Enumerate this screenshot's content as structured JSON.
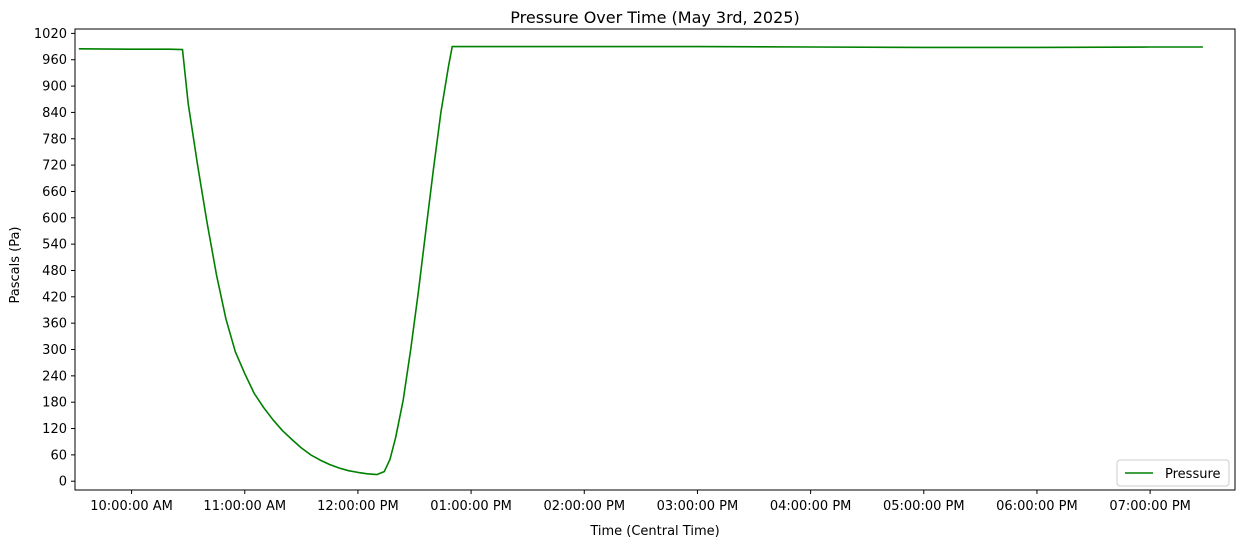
{
  "chart_data": {
    "type": "line",
    "title": "Pressure Over Time (May 3rd, 2025)",
    "xlabel": "Time (Central Time)",
    "ylabel": "Pascals (Pa)",
    "ylim": [
      -20,
      1030
    ],
    "xlim": [
      "09:30",
      "19:45"
    ],
    "x_ticks": [
      "10:00",
      "11:00",
      "12:00",
      "13:00",
      "14:00",
      "15:00",
      "16:00",
      "17:00",
      "18:00",
      "19:00"
    ],
    "x_tick_labels": [
      "10:00:00 AM",
      "11:00:00 AM",
      "12:00:00 PM",
      "01:00:00 PM",
      "02:00:00 PM",
      "03:00:00 PM",
      "04:00:00 PM",
      "05:00:00 PM",
      "06:00:00 PM",
      "07:00:00 PM"
    ],
    "y_ticks": [
      0,
      60,
      120,
      180,
      240,
      300,
      360,
      420,
      480,
      540,
      600,
      660,
      720,
      780,
      840,
      900,
      960,
      1020
    ],
    "y_tick_labels": [
      "0",
      "60",
      "120",
      "180",
      "240",
      "300",
      "360",
      "420",
      "480",
      "540",
      "600",
      "660",
      "720",
      "780",
      "840",
      "900",
      "960",
      "1020"
    ],
    "grid": false,
    "legend_position": "lower right",
    "colors": {
      "line": "#008000",
      "axis": "#000000",
      "background": "#ffffff"
    },
    "series": [
      {
        "name": "Pressure",
        "x": [
          "09:32",
          "10:00",
          "10:20",
          "10:27",
          "10:30",
          "10:35",
          "10:40",
          "10:45",
          "10:50",
          "10:55",
          "11:00",
          "11:05",
          "11:10",
          "11:15",
          "11:20",
          "11:25",
          "11:30",
          "11:35",
          "11:40",
          "11:45",
          "11:50",
          "11:55",
          "12:00",
          "12:05",
          "12:10",
          "12:14",
          "12:17",
          "12:20",
          "12:24",
          "12:28",
          "12:32",
          "12:36",
          "12:40",
          "12:44",
          "12:48",
          "12:50",
          "14:00",
          "15:00",
          "16:00",
          "17:00",
          "18:00",
          "19:00",
          "19:28"
        ],
        "y": [
          985,
          984,
          984,
          983,
          860,
          720,
          590,
          470,
          370,
          295,
          245,
          200,
          168,
          140,
          115,
          95,
          76,
          60,
          48,
          38,
          30,
          24,
          20,
          17,
          15,
          22,
          50,
          100,
          185,
          300,
          430,
          570,
          710,
          840,
          945,
          990,
          990,
          990,
          989,
          988,
          988,
          989,
          989
        ]
      }
    ]
  }
}
